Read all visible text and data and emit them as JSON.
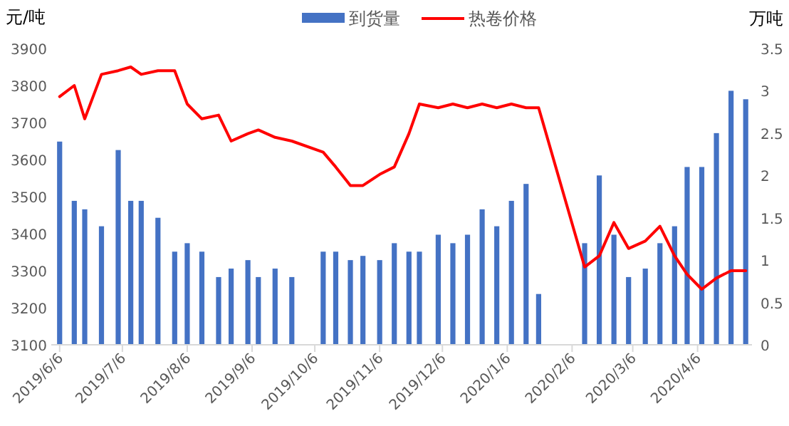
{
  "chart_data": {
    "type": "bar",
    "ylabel": "元/吨",
    "y2label": "万吨",
    "legend": "top",
    "xlim": [
      "2019-06-02",
      "2020-05-02"
    ],
    "xticks": [
      {
        "value": "2019-06-06",
        "label": "2019/6/6"
      },
      {
        "value": "2019-07-06",
        "label": "2019/7/6"
      },
      {
        "value": "2019-08-06",
        "label": "2019/8/6"
      },
      {
        "value": "2019-09-06",
        "label": "2019/9/6"
      },
      {
        "value": "2019-10-06",
        "label": "2019/10/6"
      },
      {
        "value": "2019-11-06",
        "label": "2019/11/6"
      },
      {
        "value": "2019-12-06",
        "label": "2019/12/6"
      },
      {
        "value": "2020-01-06",
        "label": "2020/1/6"
      },
      {
        "value": "2020-02-06",
        "label": "2020/2/6"
      },
      {
        "value": "2020-03-06",
        "label": "2020/3/6"
      },
      {
        "value": "2020-04-06",
        "label": "2020/4/6"
      }
    ],
    "ylim": [
      3100,
      3900
    ],
    "yticks": [
      3100,
      3200,
      3300,
      3400,
      3500,
      3600,
      3700,
      3800,
      3900
    ],
    "y2lim": [
      0,
      3.5
    ],
    "y2ticks": [
      0,
      0.5,
      1,
      1.5,
      2,
      2.5,
      3,
      3.5
    ],
    "x": [
      "2019-06-06",
      "2019-06-13",
      "2019-06-18",
      "2019-06-26",
      "2019-07-04",
      "2019-07-10",
      "2019-07-15",
      "2019-07-23",
      "2019-07-31",
      "2019-08-06",
      "2019-08-13",
      "2019-08-21",
      "2019-08-27",
      "2019-09-04",
      "2019-09-09",
      "2019-09-17",
      "2019-09-25",
      "2019-10-10",
      "2019-10-16",
      "2019-10-23",
      "2019-10-29",
      "2019-11-06",
      "2019-11-13",
      "2019-11-20",
      "2019-11-25",
      "2019-12-04",
      "2019-12-11",
      "2019-12-18",
      "2019-12-25",
      "2020-01-01",
      "2020-01-08",
      "2020-01-15",
      "2020-01-21",
      "2020-02-12",
      "2020-02-19",
      "2020-02-26",
      "2020-03-04",
      "2020-03-12",
      "2020-03-19",
      "2020-03-26",
      "2020-04-01",
      "2020-04-08",
      "2020-04-15",
      "2020-04-22",
      "2020-04-29"
    ],
    "series": [
      {
        "name": "到货量",
        "axis": "y2",
        "color": "#4472c4",
        "values": [
          2.4,
          1.7,
          1.6,
          1.4,
          2.3,
          1.7,
          1.7,
          1.5,
          1.1,
          1.2,
          1.1,
          0.8,
          0.9,
          1.0,
          0.8,
          0.9,
          0.8,
          1.1,
          1.1,
          1.0,
          1.05,
          1.0,
          1.2,
          1.1,
          1.1,
          1.3,
          1.2,
          1.3,
          1.6,
          1.4,
          1.7,
          1.9,
          0.6,
          1.2,
          2.0,
          1.3,
          0.8,
          0.9,
          1.2,
          1.4,
          2.1,
          2.1,
          2.5,
          3.0,
          2.9
        ]
      },
      {
        "name": "热卷价格",
        "type": "line",
        "color": "#ff0000",
        "values": [
          3770,
          3800,
          3710,
          3830,
          3840,
          3850,
          3830,
          3840,
          3840,
          3750,
          3710,
          3720,
          3650,
          3670,
          3680,
          3660,
          3650,
          3620,
          3580,
          3530,
          3530,
          3560,
          3580,
          3670,
          3750,
          3740,
          3750,
          3740,
          3750,
          3740,
          3750,
          3740,
          3740,
          3310,
          3340,
          3430,
          3360,
          3380,
          3420,
          3340,
          3290,
          3250,
          3280,
          3300,
          3300
        ]
      }
    ]
  }
}
